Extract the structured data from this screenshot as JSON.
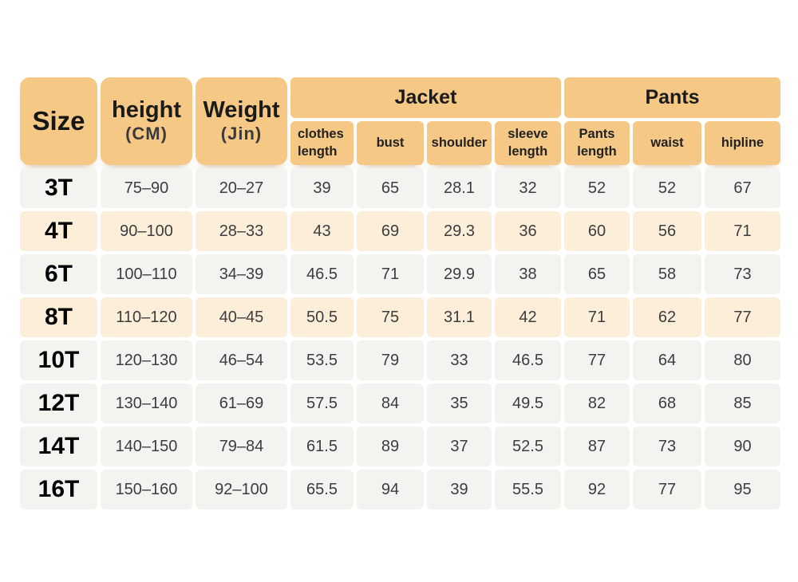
{
  "table": {
    "header": {
      "size_label": "Size",
      "height_line1": "height",
      "height_line2": "(CM)",
      "weight_line1": "Weight",
      "weight_line2": "(Jin)",
      "jacket_label": "Jacket",
      "pants_label": "Pants",
      "subcolumns": [
        {
          "label": "clothes length"
        },
        {
          "label": "bust"
        },
        {
          "label": "shoulder"
        },
        {
          "label": "sleeve length"
        },
        {
          "label": "Pants length"
        },
        {
          "label": "waist"
        },
        {
          "label": "hipline"
        }
      ]
    },
    "rows": [
      {
        "size": "3T",
        "highlight": false,
        "cells": [
          "75–90",
          "20–27",
          "39",
          "65",
          "28.1",
          "32",
          "52",
          "52",
          "67"
        ]
      },
      {
        "size": "4T",
        "highlight": true,
        "cells": [
          "90–100",
          "28–33",
          "43",
          "69",
          "29.3",
          "36",
          "60",
          "56",
          "71"
        ]
      },
      {
        "size": "6T",
        "highlight": false,
        "cells": [
          "100–110",
          "34–39",
          "46.5",
          "71",
          "29.9",
          "38",
          "65",
          "58",
          "73"
        ]
      },
      {
        "size": "8T",
        "highlight": true,
        "cells": [
          "110–120",
          "40–45",
          "50.5",
          "75",
          "31.1",
          "42",
          "71",
          "62",
          "77"
        ]
      },
      {
        "size": "10T",
        "highlight": false,
        "cells": [
          "120–130",
          "46–54",
          "53.5",
          "79",
          "33",
          "46.5",
          "77",
          "64",
          "80"
        ]
      },
      {
        "size": "12T",
        "highlight": false,
        "cells": [
          "130–140",
          "61–69",
          "57.5",
          "84",
          "35",
          "49.5",
          "82",
          "68",
          "85"
        ]
      },
      {
        "size": "14T",
        "highlight": false,
        "cells": [
          "140–150",
          "79–84",
          "61.5",
          "89",
          "37",
          "52.5",
          "87",
          "73",
          "90"
        ]
      },
      {
        "size": "16T",
        "highlight": false,
        "cells": [
          "150–160",
          "92–100",
          "65.5",
          "94",
          "39",
          "55.5",
          "92",
          "77",
          "95"
        ]
      }
    ]
  },
  "colors": {
    "header_bg": "#f6c886",
    "row_bg": "#f3f3f0",
    "row_highlight_bg": "#fdeeda",
    "page_bg": "#ffffff",
    "header_text": "#1c1c1c",
    "cell_text": "#3d3d3d"
  },
  "chart_data": {
    "type": "table",
    "column_groups": [
      {
        "label": "",
        "columns": [
          "Size",
          "height (CM)",
          "Weight (Jin)"
        ]
      },
      {
        "label": "Jacket",
        "columns": [
          "clothes length",
          "bust",
          "shoulder",
          "sleeve length"
        ]
      },
      {
        "label": "Pants",
        "columns": [
          "Pants length",
          "waist",
          "hipline"
        ]
      }
    ],
    "columns": [
      "Size",
      "height (CM)",
      "Weight (Jin)",
      "clothes length",
      "bust",
      "shoulder",
      "sleeve length",
      "Pants length",
      "waist",
      "hipline"
    ],
    "rows": [
      [
        "3T",
        "75–90",
        "20–27",
        39,
        65,
        28.1,
        32,
        52,
        52,
        67
      ],
      [
        "4T",
        "90–100",
        "28–33",
        43,
        69,
        29.3,
        36,
        60,
        56,
        71
      ],
      [
        "6T",
        "100–110",
        "34–39",
        46.5,
        71,
        29.9,
        38,
        65,
        58,
        73
      ],
      [
        "8T",
        "110–120",
        "40–45",
        50.5,
        75,
        31.1,
        42,
        71,
        62,
        77
      ],
      [
        "10T",
        "120–130",
        "46–54",
        53.5,
        79,
        33,
        46.5,
        77,
        64,
        80
      ],
      [
        "12T",
        "130–140",
        "61–69",
        57.5,
        84,
        35,
        49.5,
        82,
        68,
        85
      ],
      [
        "14T",
        "140–150",
        "79–84",
        61.5,
        89,
        37,
        52.5,
        87,
        73,
        90
      ],
      [
        "16T",
        "150–160",
        "92–100",
        65.5,
        94,
        39,
        55.5,
        92,
        77,
        95
      ]
    ],
    "highlighted_rows": [
      "4T",
      "8T"
    ]
  }
}
